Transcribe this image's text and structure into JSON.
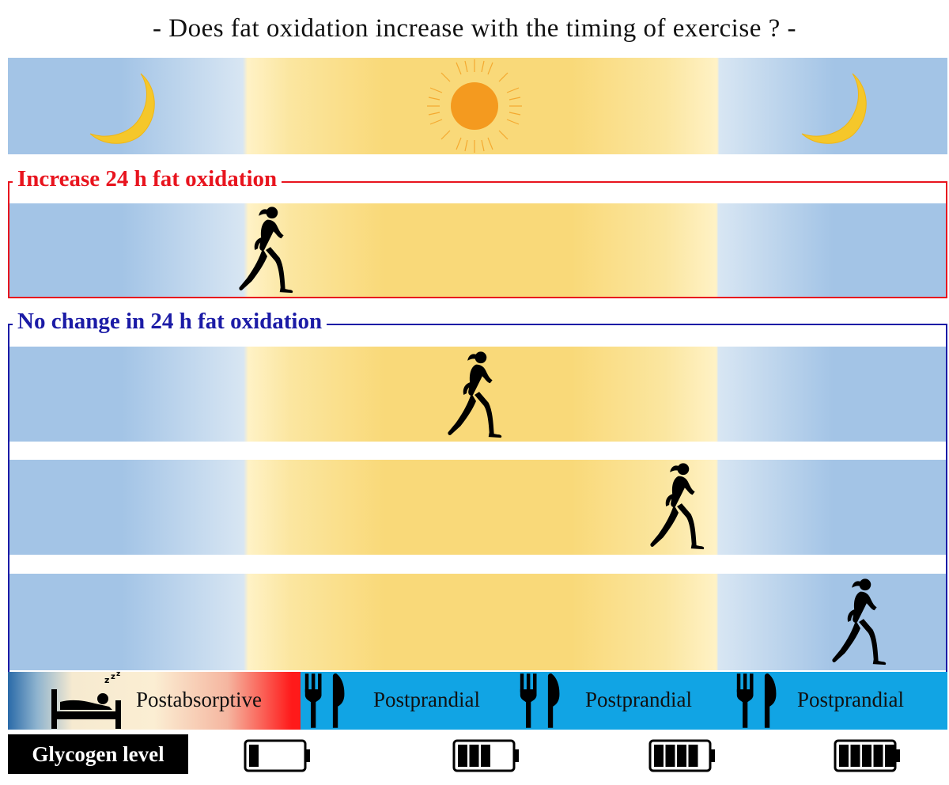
{
  "title": "- Does fat oxidation increase with the timing of exercise ? -",
  "sections": {
    "increase": {
      "label": "Increase 24 h fat oxidation",
      "color": "#e8141e"
    },
    "no_change": {
      "label": "No change in 24 h fat oxidation",
      "color": "#1b1ba6"
    }
  },
  "phases": {
    "postabsorptive": "Postabsorptive",
    "postprandial_1": "Postprandial",
    "postprandial_2": "Postprandial",
    "postprandial_3": "Postprandial"
  },
  "glycogen": {
    "label": "Glycogen level",
    "levels": [
      1,
      3,
      4,
      5
    ]
  },
  "icons": [
    "moon-icon",
    "sun-icon",
    "runner-icon",
    "sleeping-bed-icon",
    "fork-knife-icon",
    "battery-icon"
  ]
}
